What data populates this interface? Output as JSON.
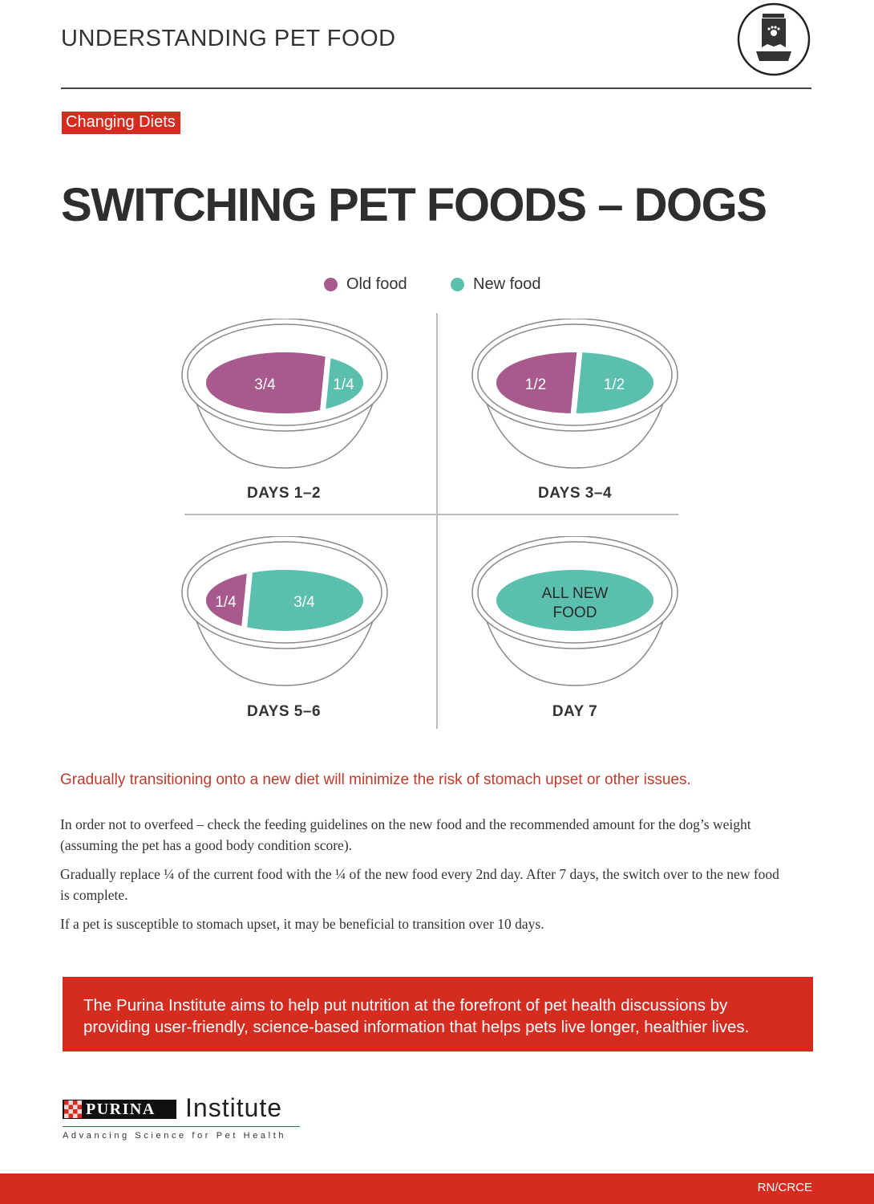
{
  "header": {
    "title": "UNDERSTANDING PET FOOD",
    "icon": "pet-food-bag-bowl-icon"
  },
  "tag": "Changing Diets",
  "page_title": "SWITCHING PET FOODS – DOGS",
  "legend": [
    {
      "label": "Old food",
      "color": "#a95a8c"
    },
    {
      "label": "New food",
      "color": "#5bbfae"
    }
  ],
  "bowls": [
    {
      "label": "DAYS 1–2",
      "old": "3/4",
      "new": "1/4",
      "old_fraction": 0.75
    },
    {
      "label": "DAYS 3–4",
      "old": "1/2",
      "new": "1/2",
      "old_fraction": 0.5
    },
    {
      "label": "DAYS 5–6",
      "old": "1/4",
      "new": "3/4",
      "old_fraction": 0.25
    },
    {
      "label": "DAY 7",
      "all": "ALL NEW FOOD",
      "old_fraction": 0
    }
  ],
  "intro": "Gradually transitioning onto a new diet will minimize the risk of stomach upset or other issues.",
  "paragraphs": [
    "In order not to overfeed – check the feeding guidelines on the new food and the recommended amount for the dog’s weight (assuming the pet has a good body condition score).",
    "Gradually replace ¼ of the current food with the ¼ of the new food every 2nd day. After 7 days, the switch over to the new food is complete.",
    "If a pet is susceptible to stomach upset, it may be beneficial to transition over 10 days."
  ],
  "banner": "The Purina Institute aims to help put nutrition at the forefront of pet health discussions by providing user-friendly, science-based information that helps pets live longer, healthier lives.",
  "logo": {
    "brand": "PURINA",
    "name": "Institute",
    "tagline": "Advancing Science for Pet Health"
  },
  "footer_code": "RN/CRCE",
  "colors": {
    "red": "#d62b1f",
    "old": "#a95a8c",
    "new": "#5bbfae"
  }
}
